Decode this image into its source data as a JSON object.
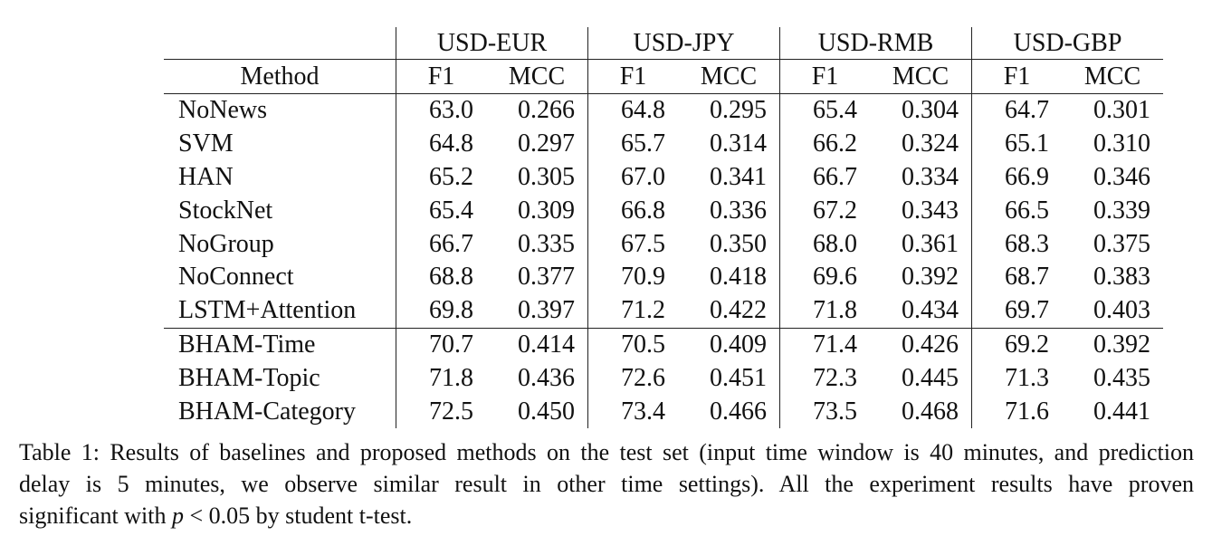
{
  "table": {
    "groups": [
      "USD-EUR",
      "USD-JPY",
      "USD-RMB",
      "USD-GBP"
    ],
    "method_header": "Method",
    "metric_headers": [
      "F1",
      "MCC"
    ],
    "rows": [
      {
        "method": "NoNews",
        "values": [
          "63.0",
          "0.266",
          "64.8",
          "0.295",
          "65.4",
          "0.304",
          "64.7",
          "0.301"
        ]
      },
      {
        "method": "SVM",
        "values": [
          "64.8",
          "0.297",
          "65.7",
          "0.314",
          "66.2",
          "0.324",
          "65.1",
          "0.310"
        ]
      },
      {
        "method": "HAN",
        "values": [
          "65.2",
          "0.305",
          "67.0",
          "0.341",
          "66.7",
          "0.334",
          "66.9",
          "0.346"
        ]
      },
      {
        "method": "StockNet",
        "values": [
          "65.4",
          "0.309",
          "66.8",
          "0.336",
          "67.2",
          "0.343",
          "66.5",
          "0.339"
        ]
      },
      {
        "method": "NoGroup",
        "values": [
          "66.7",
          "0.335",
          "67.5",
          "0.350",
          "68.0",
          "0.361",
          "68.3",
          "0.375"
        ]
      },
      {
        "method": "NoConnect",
        "values": [
          "68.8",
          "0.377",
          "70.9",
          "0.418",
          "69.6",
          "0.392",
          "68.7",
          "0.383"
        ]
      },
      {
        "method": "LSTM+Attention",
        "values": [
          "69.8",
          "0.397",
          "71.2",
          "0.422",
          "71.8",
          "0.434",
          "69.7",
          "0.403"
        ]
      },
      {
        "method": "BHAM-Time",
        "values": [
          "70.7",
          "0.414",
          "70.5",
          "0.409",
          "71.4",
          "0.426",
          "69.2",
          "0.392"
        ]
      },
      {
        "method": "BHAM-Topic",
        "values": [
          "71.8",
          "0.436",
          "72.6",
          "0.451",
          "72.3",
          "0.445",
          "71.3",
          "0.435"
        ]
      },
      {
        "method": "BHAM-Category",
        "values": [
          "72.5",
          "0.450",
          "73.4",
          "0.466",
          "73.5",
          "0.468",
          "71.6",
          "0.441"
        ],
        "bold_values": true
      }
    ]
  },
  "caption": {
    "line1": "Table 1: Results of baselines and proposed methods on the test set (input time window is 40 minutes, and prediction",
    "line2": "delay is 5 minutes, we observe similar result in other time settings).  All the experiment results have proven",
    "line3_before": "significant with ",
    "math_p": "p",
    "math_op": " < ",
    "math_val": "0.05",
    "line3_after": " by student t-test."
  }
}
